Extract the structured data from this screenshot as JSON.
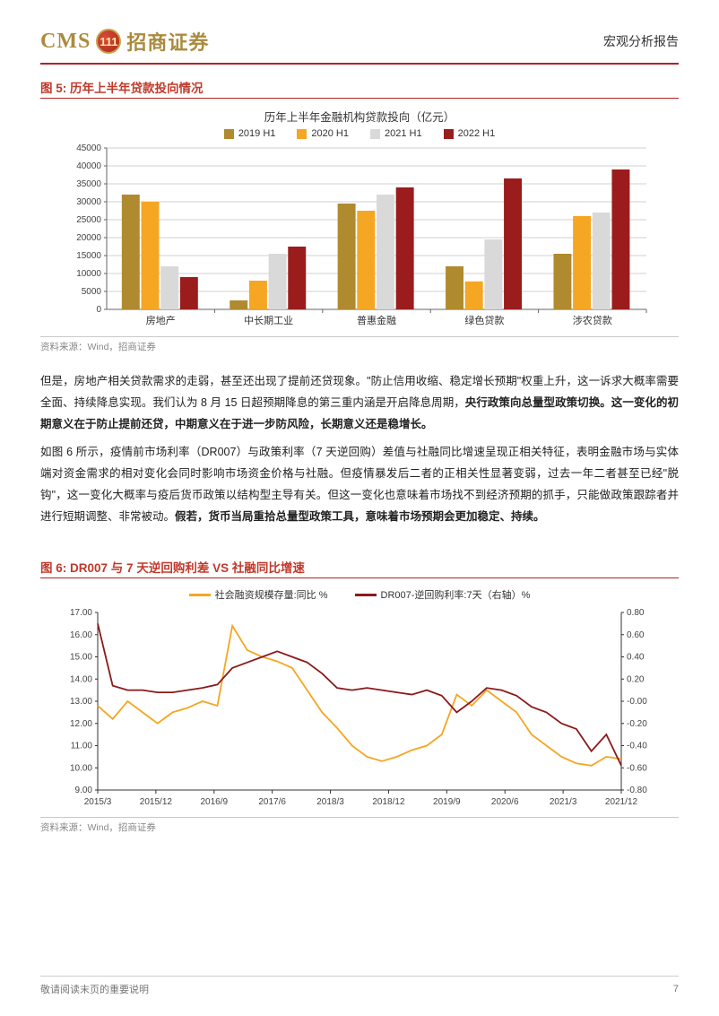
{
  "header": {
    "logo_cms": "CMS",
    "logo_badge": "111",
    "logo_cn": "招商证券",
    "report_type": "宏观分析报告"
  },
  "figure5": {
    "label": "图 5:",
    "title": "历年上半年贷款投向情况",
    "inner_title": "历年上半年金融机构贷款投向（亿元）",
    "source": "资料来源：Wind，招商证券",
    "type": "bar",
    "categories": [
      "房地产",
      "中长期工业",
      "普惠金融",
      "绿色贷款",
      "涉农贷款"
    ],
    "series": [
      {
        "name": "2019 H1",
        "color": "#b08a2e",
        "values": [
          32000,
          2500,
          29500,
          12000,
          15500
        ]
      },
      {
        "name": "2020 H1",
        "color": "#f5a623",
        "values": [
          30000,
          8000,
          27500,
          7800,
          26000
        ]
      },
      {
        "name": "2021 H1",
        "color": "#d9d9d9",
        "values": [
          12000,
          15500,
          32000,
          19500,
          27000
        ]
      },
      {
        "name": "2022 H1",
        "color": "#9b1c1c",
        "values": [
          9000,
          17500,
          34000,
          36500,
          39000
        ]
      }
    ],
    "ylim": [
      0,
      45000
    ],
    "ytick_step": 5000,
    "background_color": "#ffffff",
    "grid_color": "#d0d0d0",
    "bar_group_width": 0.72,
    "label_fontsize": 10
  },
  "body": {
    "p1_pre": "但是，房地产相关贷款需求的走弱，甚至还出现了提前还贷现象。\"防止信用收缩、稳定增长预期\"权重上升，这一诉求大概率需要全面、持续降息实现。我们认为 8 月 15 日超预期降息的第三重内涵是开启降息周期，",
    "p1_bold": "央行政策向总量型政策切换。这一变化的初期意义在于防止提前还贷，中期意义在于进一步防风险，长期意义还是稳增长。",
    "p2_pre": "如图 6 所示，疫情前市场利率（DR007）与政策利率（7 天逆回购）差值与社融同比增速呈现正相关特征，表明金融市场与实体端对资金需求的相对变化会同时影响市场资金价格与社融。但疫情暴发后二者的正相关性显著变弱，过去一年二者甚至已经\"脱钩\"，这一变化大概率与疫后货币政策以结构型主导有关。但这一变化也意味着市场找不到经济预期的抓手，只能做政策跟踪者并进行短期调整、非常被动。",
    "p2_bold": "假若，货币当局重拾总量型政策工具，意味着市场预期会更加稳定、持续。"
  },
  "figure6": {
    "label": "图 6:",
    "title": "DR007 与 7 天逆回购利差 VS 社融同比增速",
    "source": "资料来源：Wind，招商证券",
    "type": "line-dual-axis",
    "series": [
      {
        "name": "社会融资规模存量:同比 %",
        "color": "#f5a623",
        "axis": "left"
      },
      {
        "name": "DR007-逆回购利率:7天（右轴）%",
        "color": "#8b1a1a",
        "axis": "right"
      }
    ],
    "x_labels": [
      "2015/3",
      "2015/12",
      "2016/9",
      "2017/6",
      "2018/3",
      "2018/12",
      "2019/9",
      "2020/6",
      "2021/3",
      "2021/12"
    ],
    "left_ylim": [
      9.0,
      17.0
    ],
    "left_ytick_step": 1.0,
    "right_ylim": [
      -0.8,
      0.8
    ],
    "right_ytick_step": 0.2,
    "background_color": "#ffffff",
    "axis_color": "#333333",
    "left_data": [
      12.8,
      12.2,
      13.0,
      12.5,
      12.0,
      12.5,
      12.7,
      13.0,
      12.8,
      16.4,
      15.3,
      15.0,
      14.8,
      14.5,
      13.5,
      12.5,
      11.8,
      11.0,
      10.5,
      10.3,
      10.5,
      10.8,
      11.0,
      11.5,
      13.3,
      12.8,
      13.5,
      13.0,
      12.5,
      11.5,
      11.0,
      10.5,
      10.2,
      10.1,
      10.5,
      10.4
    ],
    "right_data": [
      0.7,
      0.14,
      0.1,
      0.1,
      0.08,
      0.08,
      0.1,
      0.12,
      0.15,
      0.3,
      0.35,
      0.4,
      0.45,
      0.4,
      0.35,
      0.25,
      0.12,
      0.1,
      0.12,
      0.1,
      0.08,
      0.06,
      0.1,
      0.05,
      -0.1,
      0.0,
      0.12,
      0.1,
      0.05,
      -0.05,
      -0.1,
      -0.2,
      -0.25,
      -0.45,
      -0.3,
      -0.58
    ],
    "line_width": 1.8
  },
  "footer": {
    "disclaimer": "敬请阅读末页的重要说明",
    "page_number": "7"
  }
}
